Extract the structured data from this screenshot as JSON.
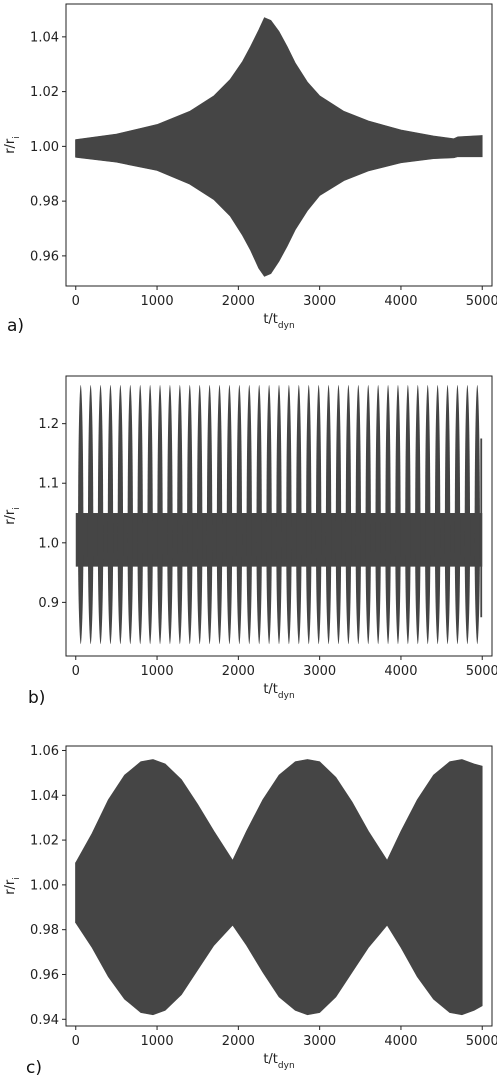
{
  "chart_data": [
    {
      "panel": "a)",
      "type": "area",
      "xlabel": "t/t",
      "xlabel_sub": "dyn",
      "ylabel": "r/r",
      "ylabel_sub": "i",
      "xlim": [
        -120,
        5120
      ],
      "ylim": [
        0.949,
        1.052
      ],
      "x_ticks": [
        0,
        1000,
        2000,
        3000,
        4000,
        5000
      ],
      "x_tick_labels": [
        "0",
        "1000",
        "2000",
        "3000",
        "4000",
        "5000"
      ],
      "y_ticks": [
        0.96,
        0.98,
        1.0,
        1.02,
        1.04
      ],
      "y_tick_labels": [
        "0.96",
        "0.98",
        "1.00",
        "1.02",
        "1.04"
      ],
      "grid": false,
      "fill_color": "#454545",
      "series": [
        {
          "x": [
            0,
            500,
            1000,
            1400,
            1700,
            1900,
            2050,
            2150,
            2250,
            2320,
            2400,
            2500,
            2600,
            2700,
            2850,
            3000,
            3300,
            3600,
            4000,
            4400,
            4650,
            4700,
            5000
          ],
          "upper": [
            1.0025,
            1.0045,
            1.008,
            1.0128,
            1.0185,
            1.0245,
            1.031,
            1.0365,
            1.0425,
            1.047,
            1.046,
            1.042,
            1.0365,
            1.0305,
            1.0235,
            1.0185,
            1.0128,
            1.0093,
            1.006,
            1.0038,
            1.0028,
            1.0035,
            1.004
          ],
          "lower": [
            0.996,
            0.9942,
            0.9912,
            0.9862,
            0.9805,
            0.9745,
            0.9675,
            0.962,
            0.9555,
            0.9525,
            0.9535,
            0.958,
            0.9635,
            0.9695,
            0.9765,
            0.982,
            0.9875,
            0.991,
            0.994,
            0.9955,
            0.9958,
            0.9962,
            0.9962
          ]
        }
      ]
    },
    {
      "panel": "b)",
      "type": "line",
      "xlabel": "t/t",
      "xlabel_sub": "dyn",
      "ylabel": "r/r",
      "ylabel_sub": "i",
      "xlim": [
        -120,
        5120
      ],
      "ylim": [
        0.81,
        1.28
      ],
      "x_ticks": [
        0,
        1000,
        2000,
        3000,
        4000,
        5000
      ],
      "x_tick_labels": [
        "0",
        "1000",
        "2000",
        "3000",
        "4000",
        "5000"
      ],
      "y_ticks": [
        0.9,
        1.0,
        1.1,
        1.2
      ],
      "y_tick_labels": [
        "0.9",
        "1.0",
        "1.1",
        "1.2"
      ],
      "grid": false,
      "fill_color": "#454545",
      "series": [
        {
          "x_start": 0,
          "x_end": 5000,
          "oscillations": 41,
          "y_max": 1.265,
          "y_min": 0.83,
          "core_upper": 1.05,
          "core_lower": 0.96,
          "end_spike_upper": 1.175,
          "end_spike_lower": 0.875
        }
      ]
    },
    {
      "panel": "c)",
      "type": "area",
      "xlabel": "t/t",
      "xlabel_sub": "dyn",
      "ylabel": "r/r",
      "ylabel_sub": "i",
      "xlim": [
        -120,
        5120
      ],
      "ylim": [
        0.937,
        1.062
      ],
      "x_ticks": [
        0,
        1000,
        2000,
        3000,
        4000,
        5000
      ],
      "x_tick_labels": [
        "0",
        "1000",
        "2000",
        "3000",
        "4000",
        "5000"
      ],
      "y_ticks": [
        0.94,
        0.96,
        0.98,
        1.0,
        1.02,
        1.04,
        1.06
      ],
      "y_tick_labels": [
        "0.94",
        "0.96",
        "0.98",
        "1.00",
        "1.02",
        "1.04",
        "1.06"
      ],
      "grid": false,
      "fill_color": "#454545",
      "series": [
        {
          "x": [
            0,
            200,
            400,
            600,
            800,
            950,
            1100,
            1300,
            1500,
            1700,
            1930,
            2100,
            2300,
            2500,
            2700,
            2850,
            3000,
            3200,
            3400,
            3600,
            3830,
            4000,
            4200,
            4400,
            4600,
            4750,
            4900,
            5000
          ],
          "upper": [
            1.01,
            1.023,
            1.038,
            1.049,
            1.055,
            1.056,
            1.054,
            1.047,
            1.036,
            1.024,
            1.011,
            1.024,
            1.038,
            1.049,
            1.055,
            1.056,
            1.055,
            1.048,
            1.037,
            1.024,
            1.011,
            1.024,
            1.038,
            1.049,
            1.055,
            1.056,
            1.054,
            1.053
          ],
          "lower": [
            0.983,
            0.972,
            0.959,
            0.949,
            0.943,
            0.942,
            0.944,
            0.951,
            0.962,
            0.973,
            0.982,
            0.973,
            0.961,
            0.95,
            0.944,
            0.942,
            0.943,
            0.95,
            0.961,
            0.972,
            0.982,
            0.972,
            0.959,
            0.949,
            0.943,
            0.942,
            0.944,
            0.946
          ]
        }
      ]
    }
  ]
}
